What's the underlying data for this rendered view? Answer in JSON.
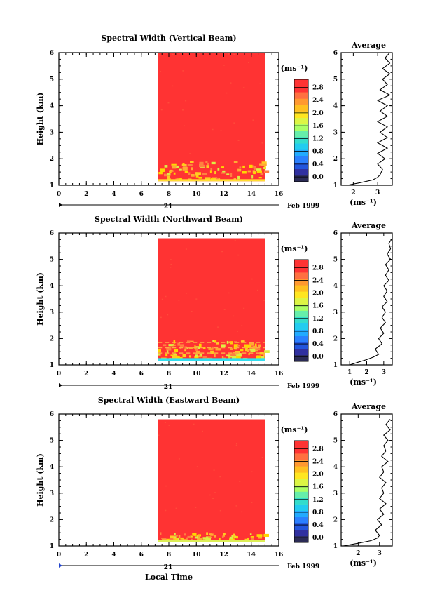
{
  "figure": {
    "x_label": "Local Time",
    "date_day": "21",
    "date_month": "Feb 1999",
    "colorbar_unit": "(ms⁻¹)",
    "colors": {
      "fill": "#ff3333",
      "accent_yellow": "#ffd700",
      "accent_cyan": "#33ddee",
      "colormap": [
        "#2b2b55",
        "#3030a0",
        "#2255dd",
        "#2a80ff",
        "#22aaff",
        "#22ccf0",
        "#33ddcc",
        "#66eeaa",
        "#aaff66",
        "#ddf544",
        "#ffe620",
        "#ffc020",
        "#ff9930",
        "#ff7040",
        "#ff3333",
        "#ff3333"
      ]
    }
  },
  "panels": [
    {
      "title": "Spectral Width (Vertical Beam)",
      "avg_title": "Average",
      "avg_unit": "(ms⁻¹)"
    },
    {
      "title": "Spectral Width (Northward Beam)",
      "avg_title": "Average",
      "avg_unit": "(ms⁻¹)"
    },
    {
      "title": "Spectral Width (Eastward Beam)",
      "avg_title": "Average",
      "avg_unit": "(ms⁻¹)"
    }
  ],
  "chart_data": [
    {
      "type": "heatmap",
      "title": "Spectral Width (Vertical Beam)",
      "xlabel": "",
      "ylabel": "Height (km)",
      "xlim": [
        0,
        16
      ],
      "ylim": [
        1,
        6
      ],
      "x_ticks": [
        0,
        2,
        4,
        6,
        8,
        10,
        12,
        14,
        16
      ],
      "y_ticks": [
        1,
        2,
        3,
        4,
        5,
        6
      ],
      "data_x_range": [
        7.2,
        15.0
      ],
      "data_y_range": [
        1.15,
        6.0
      ],
      "colorbar_ticks": [
        0.0,
        0.4,
        0.8,
        1.2,
        1.6,
        2.0,
        2.4,
        2.8
      ],
      "colorbar_range": [
        0.0,
        3.2
      ],
      "average_profile": {
        "xlim": [
          1.5,
          3.6
        ],
        "x_ticks": [
          2,
          3
        ],
        "ylim": [
          1,
          6
        ],
        "height": [
          1.0,
          1.1,
          1.2,
          1.3,
          1.4,
          1.6,
          1.8,
          2.0,
          2.2,
          2.4,
          2.6,
          2.8,
          3.0,
          3.2,
          3.4,
          3.6,
          3.8,
          4.0,
          4.2,
          4.4,
          4.6,
          4.8,
          5.0,
          5.2,
          5.4,
          5.6,
          5.8,
          6.0
        ],
        "width": [
          1.75,
          2.3,
          2.8,
          3.0,
          3.1,
          3.2,
          3.0,
          3.3,
          3.0,
          3.4,
          3.0,
          3.4,
          3.1,
          3.4,
          3.0,
          3.4,
          3.1,
          3.4,
          3.0,
          3.5,
          3.1,
          3.4,
          3.2,
          3.5,
          3.2,
          3.5,
          3.3,
          3.5
        ]
      }
    },
    {
      "type": "heatmap",
      "title": "Spectral Width (Northward Beam)",
      "xlabel": "",
      "ylabel": "Height (km)",
      "xlim": [
        0,
        16
      ],
      "ylim": [
        1,
        6
      ],
      "x_ticks": [
        0,
        2,
        4,
        6,
        8,
        10,
        12,
        14,
        16
      ],
      "y_ticks": [
        1,
        2,
        3,
        4,
        5,
        6
      ],
      "data_x_range": [
        7.2,
        15.0
      ],
      "data_y_range": [
        1.15,
        5.8
      ],
      "colorbar_ticks": [
        0.0,
        0.4,
        0.8,
        1.2,
        1.6,
        2.0,
        2.4,
        2.8
      ],
      "colorbar_range": [
        0.0,
        3.2
      ],
      "average_profile": {
        "xlim": [
          0.5,
          3.5
        ],
        "x_ticks": [
          1,
          2,
          3
        ],
        "ylim": [
          1,
          6
        ],
        "height": [
          1.0,
          1.1,
          1.2,
          1.3,
          1.4,
          1.6,
          1.8,
          2.0,
          2.2,
          2.4,
          2.6,
          2.8,
          3.0,
          3.2,
          3.4,
          3.6,
          3.8,
          4.0,
          4.2,
          4.4,
          4.6,
          4.8,
          5.0,
          5.2,
          5.4,
          5.6,
          5.8
        ],
        "width": [
          1.0,
          1.5,
          2.0,
          2.4,
          2.7,
          2.5,
          2.9,
          2.7,
          3.0,
          2.8,
          3.1,
          2.9,
          3.1,
          2.9,
          3.2,
          3.0,
          3.2,
          3.0,
          3.3,
          3.1,
          3.3,
          3.1,
          3.4,
          3.2,
          3.4,
          3.3,
          3.5
        ]
      }
    },
    {
      "type": "heatmap",
      "title": "Spectral Width (Eastward Beam)",
      "xlabel": "Local Time",
      "ylabel": "Height (km)",
      "xlim": [
        0,
        16
      ],
      "ylim": [
        1,
        6
      ],
      "x_ticks": [
        0,
        2,
        4,
        6,
        8,
        10,
        12,
        14,
        16
      ],
      "y_ticks": [
        1,
        2,
        3,
        4,
        5,
        6
      ],
      "data_x_range": [
        7.2,
        15.0
      ],
      "data_y_range": [
        1.15,
        5.8
      ],
      "colorbar_ticks": [
        0.0,
        0.4,
        0.8,
        1.2,
        1.6,
        2.0,
        2.4,
        2.8
      ],
      "colorbar_range": [
        0.0,
        3.2
      ],
      "average_profile": {
        "xlim": [
          1.2,
          3.6
        ],
        "x_ticks": [
          2,
          3
        ],
        "ylim": [
          1,
          6
        ],
        "height": [
          1.0,
          1.1,
          1.2,
          1.3,
          1.4,
          1.6,
          1.8,
          2.0,
          2.2,
          2.4,
          2.6,
          2.8,
          3.0,
          3.2,
          3.4,
          3.6,
          3.8,
          4.0,
          4.2,
          4.4,
          4.6,
          4.8,
          5.0,
          5.2,
          5.4,
          5.6,
          5.8
        ],
        "width": [
          1.3,
          2.0,
          2.6,
          2.9,
          3.0,
          2.8,
          3.1,
          2.9,
          3.2,
          3.0,
          3.3,
          3.0,
          3.2,
          3.1,
          3.3,
          3.0,
          3.2,
          3.1,
          3.4,
          3.1,
          3.3,
          3.2,
          3.4,
          3.2,
          3.5,
          3.3,
          3.5
        ]
      }
    }
  ]
}
